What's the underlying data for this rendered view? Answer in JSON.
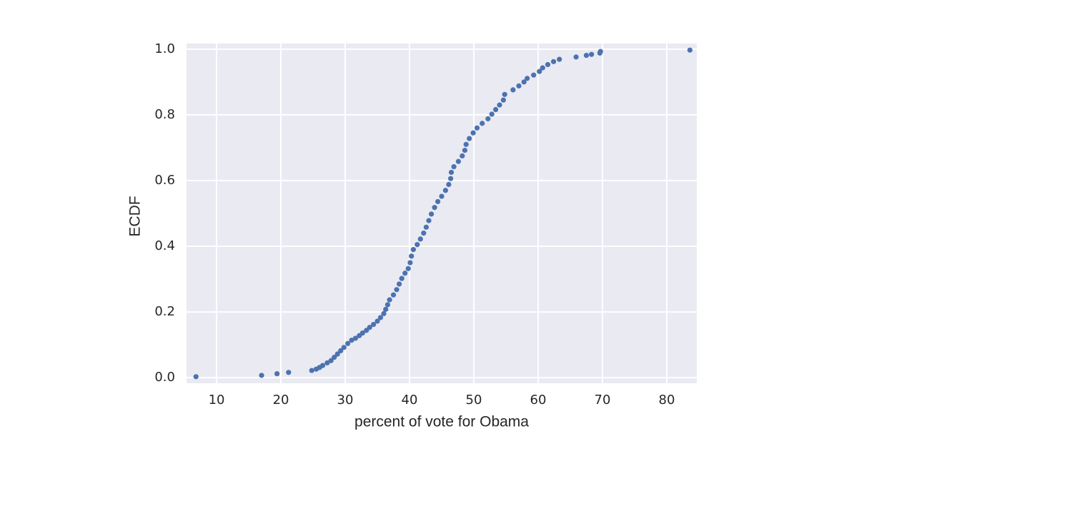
{
  "chart_data": {
    "type": "scatter",
    "x_label": "percent of vote for Obama",
    "y_label": "ECDF",
    "color": "#4c72b0",
    "background": "#eaeaf2",
    "grid": true,
    "xlim": [
      5.33,
      84.67
    ],
    "ylim": [
      -0.017,
      1.017
    ],
    "xticks": [
      10,
      20,
      30,
      40,
      50,
      60,
      70,
      80
    ],
    "yticks": [
      {
        "value": 0,
        "label": "0.0"
      },
      0.2,
      0.4,
      0.6,
      0.8,
      {
        "value": 1,
        "label": "1.0"
      }
    ],
    "x": [
      6.8,
      17.0,
      19.4,
      21.2,
      24.8,
      25.5,
      26.0,
      26.5,
      27.2,
      27.8,
      28.3,
      28.8,
      29.3,
      29.8,
      30.4,
      31.0,
      31.6,
      32.2,
      32.7,
      33.3,
      33.8,
      34.4,
      35.0,
      35.5,
      36.0,
      36.3,
      36.6,
      36.9,
      37.5,
      38.0,
      38.4,
      38.8,
      39.3,
      39.8,
      40.1,
      40.3,
      40.6,
      41.2,
      41.7,
      42.2,
      42.6,
      43.0,
      43.4,
      43.9,
      44.4,
      45.0,
      45.6,
      46.1,
      46.4,
      46.5,
      46.9,
      47.6,
      48.2,
      48.6,
      48.8,
      49.3,
      49.9,
      50.5,
      51.3,
      52.2,
      52.8,
      53.4,
      54.0,
      54.6,
      54.8,
      56.1,
      57.0,
      57.8,
      58.3,
      59.3,
      60.2,
      60.7,
      61.5,
      62.4,
      63.3,
      65.9,
      67.5,
      68.3,
      69.6,
      69.7,
      83.6
    ],
    "values": [
      0.003,
      0.007,
      0.012,
      0.016,
      0.022,
      0.026,
      0.031,
      0.037,
      0.045,
      0.052,
      0.062,
      0.072,
      0.082,
      0.092,
      0.104,
      0.114,
      0.12,
      0.128,
      0.136,
      0.144,
      0.153,
      0.162,
      0.172,
      0.183,
      0.195,
      0.208,
      0.222,
      0.237,
      0.252,
      0.268,
      0.285,
      0.302,
      0.318,
      0.332,
      0.35,
      0.37,
      0.39,
      0.405,
      0.422,
      0.44,
      0.458,
      0.478,
      0.498,
      0.518,
      0.536,
      0.552,
      0.57,
      0.588,
      0.606,
      0.625,
      0.642,
      0.658,
      0.675,
      0.692,
      0.71,
      0.728,
      0.745,
      0.76,
      0.774,
      0.788,
      0.802,
      0.816,
      0.83,
      0.845,
      0.862,
      0.876,
      0.888,
      0.9,
      0.911,
      0.921,
      0.932,
      0.943,
      0.953,
      0.962,
      0.969,
      0.976,
      0.981,
      0.984,
      0.988,
      0.993,
      0.997
    ]
  }
}
